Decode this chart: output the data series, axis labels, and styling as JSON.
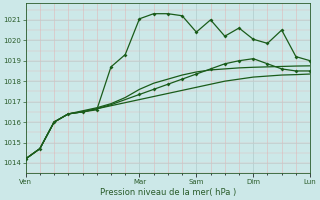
{
  "title": "Pression niveau de la mer( hPa )",
  "bg_color": "#cce8e8",
  "grid_h_color": "#b8d4d4",
  "grid_v_color": "#e0b8b8",
  "line_color": "#1a5c1a",
  "marker_color": "#1a5c1a",
  "ylim": [
    1013.5,
    1021.8
  ],
  "yticks": [
    1014,
    1015,
    1016,
    1017,
    1018,
    1019,
    1020,
    1021
  ],
  "xlim": [
    0,
    20
  ],
  "xtick_positions": [
    0,
    8,
    12,
    16,
    20
  ],
  "xtick_labels": [
    "Ven",
    "Mar",
    "Sam",
    "Dim",
    "Lun"
  ],
  "vline_positions": [
    0,
    8,
    12,
    16,
    20
  ],
  "n_points": 21,
  "series1": [
    1014.2,
    1014.7,
    1016.0,
    1016.4,
    1016.5,
    1016.6,
    1018.7,
    1019.3,
    1021.05,
    1021.3,
    1021.3,
    1021.2,
    1020.4,
    1021.0,
    1020.2,
    1020.6,
    1020.05,
    1019.85,
    1020.5,
    1019.2,
    1019.0
  ],
  "series2": [
    1014.2,
    1014.7,
    1016.0,
    1016.4,
    1016.5,
    1016.65,
    1016.85,
    1017.1,
    1017.35,
    1017.6,
    1017.85,
    1018.1,
    1018.35,
    1018.6,
    1018.85,
    1019.0,
    1019.1,
    1018.85,
    1018.6,
    1018.5,
    1018.5
  ],
  "series3": [
    1014.2,
    1014.7,
    1016.0,
    1016.4,
    1016.5,
    1016.65,
    1016.8,
    1016.95,
    1017.1,
    1017.25,
    1017.4,
    1017.55,
    1017.7,
    1017.85,
    1018.0,
    1018.1,
    1018.2,
    1018.25,
    1018.3,
    1018.32,
    1018.35
  ],
  "series4": [
    1014.2,
    1014.7,
    1016.0,
    1016.4,
    1016.55,
    1016.7,
    1016.9,
    1017.2,
    1017.6,
    1017.9,
    1018.1,
    1018.3,
    1018.45,
    1018.55,
    1018.6,
    1018.65,
    1018.68,
    1018.7,
    1018.72,
    1018.74,
    1018.75
  ],
  "markers1_x": [
    0,
    1,
    2,
    3,
    4,
    5,
    6,
    7,
    8,
    9,
    10,
    11,
    12,
    13,
    14,
    15,
    16,
    17,
    18,
    19,
    20
  ],
  "markers1_y": [
    1014.2,
    1014.7,
    1016.0,
    1016.4,
    1016.5,
    1016.6,
    1018.7,
    1019.3,
    1021.05,
    1021.3,
    1021.3,
    1021.2,
    1020.4,
    1021.0,
    1020.2,
    1020.6,
    1020.05,
    1019.85,
    1020.5,
    1019.2,
    1019.0
  ],
  "markers2_x": [
    8,
    9,
    10,
    11,
    12,
    13,
    14,
    15,
    16,
    17,
    18,
    19,
    20
  ],
  "markers2_y": [
    1017.35,
    1017.6,
    1017.85,
    1018.1,
    1018.35,
    1018.6,
    1018.85,
    1019.0,
    1019.1,
    1018.85,
    1018.6,
    1018.5,
    1018.5
  ],
  "markers3_x": [],
  "markers3_y": [],
  "markers4_x": [],
  "markers4_y": []
}
